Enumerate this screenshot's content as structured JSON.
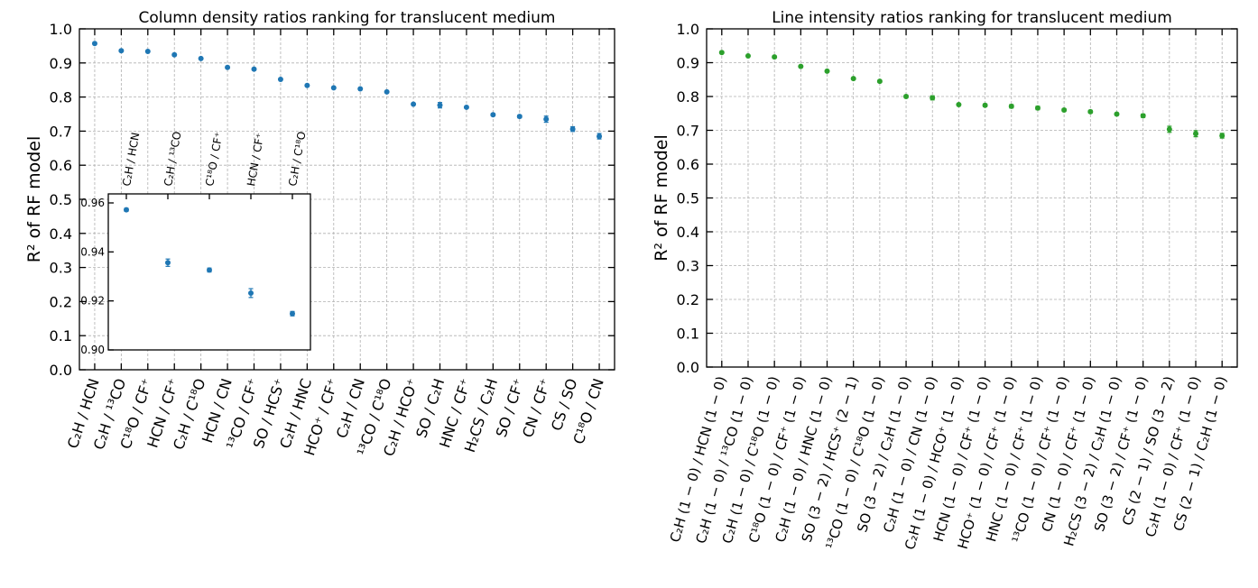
{
  "chart_data": [
    {
      "type": "scatter",
      "title": "Column density ratios ranking for translucent medium",
      "ylabel": "R² of RF model",
      "xlabel": "",
      "ylim": [
        0.0,
        1.0
      ],
      "yticks": [
        "0.0",
        "0.1",
        "0.2",
        "0.3",
        "0.4",
        "0.5",
        "0.6",
        "0.7",
        "0.8",
        "0.9",
        "1.0"
      ],
      "grid": true,
      "color": "#1f77b4",
      "categories": [
        "C₂H / HCN",
        "C₂H / ¹³CO",
        "C¹⁸O / CF⁺",
        "HCN / CF⁺",
        "C₂H / C¹⁸O",
        "HCN / CN",
        "¹³CO / CF⁺",
        "SO / HCS⁺",
        "C₂H / HNC",
        "HCO⁺ / CF⁺",
        "C₂H / CN",
        "¹³CO / C¹⁸O",
        "C₂H / HCO⁺",
        "SO / C₂H",
        "HNC / CF⁺",
        "H₂CS / C₂H",
        "SO / CF⁺",
        "CN / CF⁺",
        "CS / SO",
        "C¹⁸O / CN"
      ],
      "values": [
        0.957,
        0.936,
        0.934,
        0.924,
        0.913,
        0.887,
        0.882,
        0.852,
        0.834,
        0.827,
        0.824,
        0.815,
        0.779,
        0.776,
        0.77,
        0.748,
        0.743,
        0.735,
        0.706,
        0.685
      ],
      "errors": [
        0.001,
        0.002,
        0.001,
        0.002,
        0.001,
        0.001,
        0.002,
        0.002,
        0.002,
        0.002,
        0.002,
        0.002,
        0.002,
        0.008,
        0.003,
        0.003,
        0.004,
        0.009,
        0.007,
        0.008
      ],
      "inset": {
        "categories": [
          "C₂H / HCN",
          "C₂H / ¹³CO",
          "C¹⁸O / CF⁺",
          "HCN / CF⁺",
          "C₂H / C¹⁸O"
        ],
        "values": [
          0.9572,
          0.9356,
          0.9326,
          0.9232,
          0.9148
        ],
        "errors": [
          0.0006,
          0.0015,
          0.0008,
          0.0018,
          0.0009
        ],
        "ylim": [
          0.9,
          0.96
        ],
        "yticks": [
          "0.90",
          "0.92",
          "0.94",
          "0.96"
        ]
      }
    },
    {
      "type": "scatter",
      "title": "Line intensity ratios ranking for translucent medium",
      "ylabel": "R² of RF model",
      "xlabel": "",
      "ylim": [
        0.0,
        1.0
      ],
      "yticks": [
        "0.0",
        "0.1",
        "0.2",
        "0.3",
        "0.4",
        "0.5",
        "0.6",
        "0.7",
        "0.8",
        "0.9",
        "1.0"
      ],
      "grid": true,
      "color": "#2ca02c",
      "categories": [
        "C₂H (1 − 0) / HCN (1 − 0)",
        "C₂H (1 − 0) / ¹³CO (1 − 0)",
        "C₂H (1 − 0) / C¹⁸O (1 − 0)",
        "C¹⁸O (1 − 0) / CF⁺ (1 − 0)",
        "C₂H (1 − 0) / HNC (1 − 0)",
        "SO (3 − 2) / HCS⁺ (2 − 1)",
        "¹³CO (1 − 0) / C¹⁸O (1 − 0)",
        "SO (3 − 2) / C₂H (1 − 0)",
        "C₂H (1 − 0) / CN (1 − 0)",
        "C₂H (1 − 0) / HCO⁺ (1 − 0)",
        "HCN (1 − 0) / CF⁺ (1 − 0)",
        "HCO⁺ (1 − 0) / CF⁺ (1 − 0)",
        "HNC (1 − 0) / CF⁺ (1 − 0)",
        "¹³CO (1 − 0) / CF⁺ (1 − 0)",
        "CN (1 − 0) / CF⁺ (1 − 0)",
        "H₂CS (3 − 2) / C₂H (1 − 0)",
        "SO (3 − 2) / CF⁺ (1 − 0)",
        "CS (2 − 1) / SO (3 − 2)",
        "C₂H (1 − 0) / CF⁺ (1 − 0)",
        "CS (2 − 1) / C₂H (1 − 0)"
      ],
      "values": [
        0.93,
        0.92,
        0.917,
        0.889,
        0.875,
        0.853,
        0.845,
        0.8,
        0.796,
        0.776,
        0.774,
        0.771,
        0.766,
        0.76,
        0.755,
        0.748,
        0.743,
        0.703,
        0.69,
        0.684
      ],
      "errors": [
        0.002,
        0.002,
        0.003,
        0.002,
        0.002,
        0.002,
        0.003,
        0.004,
        0.006,
        0.002,
        0.004,
        0.005,
        0.005,
        0.004,
        0.004,
        0.003,
        0.005,
        0.009,
        0.009,
        0.007
      ]
    }
  ]
}
